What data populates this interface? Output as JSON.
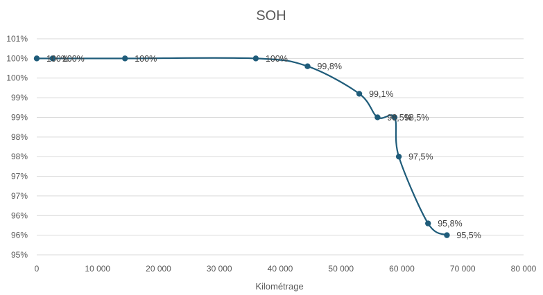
{
  "chart_data": {
    "type": "line",
    "title": "SOH",
    "xlabel": "Kilométrage",
    "ylabel": "",
    "xlim": [
      0,
      80000
    ],
    "ylim": [
      95,
      100.5
    ],
    "grid": true,
    "legend": "none",
    "smooth": true,
    "x_ticks": [
      0,
      10000,
      20000,
      30000,
      40000,
      50000,
      60000,
      70000,
      80000
    ],
    "x_tick_labels": [
      "0",
      "10 000",
      "20 000",
      "30 000",
      "40 000",
      "50 000",
      "60 000",
      "70 000",
      "80 000"
    ],
    "y_ticks": [
      95,
      95.5,
      96,
      96.5,
      97,
      97.5,
      98,
      98.5,
      99,
      99.5,
      100,
      100.5
    ],
    "y_tick_labels": [
      "95%",
      "96%",
      "96%",
      "97%",
      "97%",
      "98%",
      "98%",
      "99%",
      "99%",
      "100%",
      "100%",
      "101%"
    ],
    "line_color": "#1f5c7a",
    "series": [
      {
        "x": [
          0,
          2600,
          14500,
          36000,
          44500,
          53000,
          56000,
          58800,
          59500,
          64300,
          67400
        ],
        "y": [
          100,
          100,
          100,
          100,
          99.8,
          99.1,
          98.5,
          98.5,
          97.5,
          95.8,
          95.5
        ],
        "labels": [
          "100%",
          "100%",
          "100%",
          "100%",
          "99,8%",
          "99,1%",
          "98,5%",
          "98,5%",
          "97,5%",
          "95,8%",
          "95,5%"
        ]
      }
    ]
  }
}
